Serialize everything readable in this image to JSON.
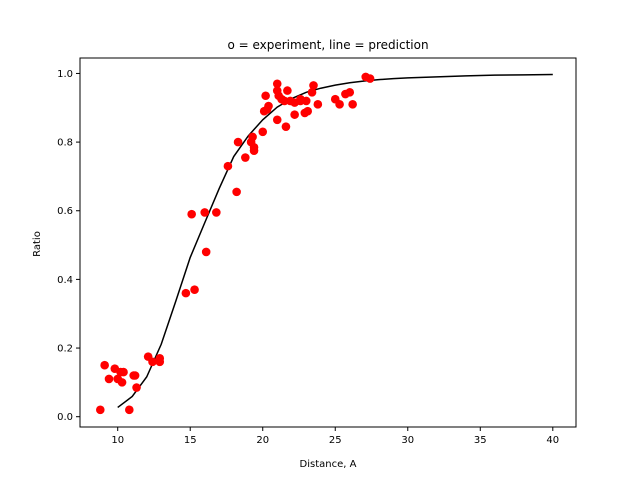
{
  "chart_data": {
    "type": "scatter",
    "title": "o = experiment, line = prediction",
    "xlabel": "Distance, A",
    "ylabel": "Ratio",
    "xlim": [
      7.4,
      41.6
    ],
    "ylim": [
      -0.03,
      1.045
    ],
    "xticks": [
      10,
      15,
      20,
      25,
      30,
      35,
      40
    ],
    "yticks": [
      0.0,
      0.2,
      0.4,
      0.6,
      0.8,
      1.0
    ],
    "xtick_labels": [
      "10",
      "15",
      "20",
      "25",
      "30",
      "35",
      "40"
    ],
    "ytick_labels": [
      "0.0",
      "0.2",
      "0.4",
      "0.6",
      "0.8",
      "1.0"
    ],
    "grid": false,
    "legend": "none",
    "series": [
      {
        "kind": "scatter",
        "color": "#ff0000",
        "points": [
          [
            8.8,
            0.02
          ],
          [
            9.1,
            0.15
          ],
          [
            9.4,
            0.11
          ],
          [
            9.8,
            0.14
          ],
          [
            10.0,
            0.11
          ],
          [
            10.2,
            0.13
          ],
          [
            10.3,
            0.1
          ],
          [
            10.4,
            0.13
          ],
          [
            10.8,
            0.02
          ],
          [
            11.1,
            0.12
          ],
          [
            11.2,
            0.12
          ],
          [
            11.3,
            0.085
          ],
          [
            12.1,
            0.175
          ],
          [
            12.4,
            0.16
          ],
          [
            12.9,
            0.16
          ],
          [
            12.9,
            0.17
          ],
          [
            14.7,
            0.36
          ],
          [
            15.1,
            0.59
          ],
          [
            15.3,
            0.37
          ],
          [
            16.0,
            0.595
          ],
          [
            16.1,
            0.48
          ],
          [
            16.8,
            0.595
          ],
          [
            17.6,
            0.73
          ],
          [
            18.2,
            0.655
          ],
          [
            18.3,
            0.8
          ],
          [
            18.8,
            0.755
          ],
          [
            19.2,
            0.8
          ],
          [
            19.3,
            0.815
          ],
          [
            19.4,
            0.785
          ],
          [
            19.4,
            0.775
          ],
          [
            20.0,
            0.83
          ],
          [
            20.1,
            0.89
          ],
          [
            20.2,
            0.935
          ],
          [
            20.3,
            0.895
          ],
          [
            20.4,
            0.905
          ],
          [
            21.0,
            0.95
          ],
          [
            21.0,
            0.865
          ],
          [
            21.0,
            0.97
          ],
          [
            21.1,
            0.935
          ],
          [
            21.3,
            0.925
          ],
          [
            21.5,
            0.92
          ],
          [
            21.6,
            0.845
          ],
          [
            21.7,
            0.95
          ],
          [
            21.9,
            0.92
          ],
          [
            22.2,
            0.88
          ],
          [
            22.2,
            0.915
          ],
          [
            22.6,
            0.92
          ],
          [
            22.6,
            0.925
          ],
          [
            22.9,
            0.885
          ],
          [
            23.0,
            0.92
          ],
          [
            23.1,
            0.89
          ],
          [
            23.4,
            0.945
          ],
          [
            23.5,
            0.965
          ],
          [
            23.8,
            0.91
          ],
          [
            25.0,
            0.925
          ],
          [
            25.3,
            0.91
          ],
          [
            25.7,
            0.94
          ],
          [
            26.0,
            0.945
          ],
          [
            26.2,
            0.91
          ],
          [
            27.1,
            0.99
          ],
          [
            27.4,
            0.985
          ]
        ]
      },
      {
        "kind": "line",
        "color": "#000000",
        "points": [
          [
            10.0,
            0.027
          ],
          [
            11.0,
            0.059
          ],
          [
            12.0,
            0.116
          ],
          [
            13.0,
            0.211
          ],
          [
            14.0,
            0.336
          ],
          [
            15.0,
            0.464
          ],
          [
            16.0,
            0.565
          ],
          [
            17.0,
            0.665
          ],
          [
            18.0,
            0.758
          ],
          [
            19.0,
            0.818
          ],
          [
            20.0,
            0.865
          ],
          [
            21.0,
            0.902
          ],
          [
            22.0,
            0.927
          ],
          [
            23.0,
            0.945
          ],
          [
            24.0,
            0.957
          ],
          [
            25.0,
            0.966
          ],
          [
            26.0,
            0.973
          ],
          [
            27.0,
            0.978
          ],
          [
            28.0,
            0.982
          ],
          [
            29.0,
            0.985
          ],
          [
            30.0,
            0.987
          ],
          [
            32.0,
            0.99
          ],
          [
            34.0,
            0.993
          ],
          [
            36.0,
            0.995
          ],
          [
            38.0,
            0.996
          ],
          [
            40.0,
            0.997
          ]
        ]
      }
    ]
  }
}
